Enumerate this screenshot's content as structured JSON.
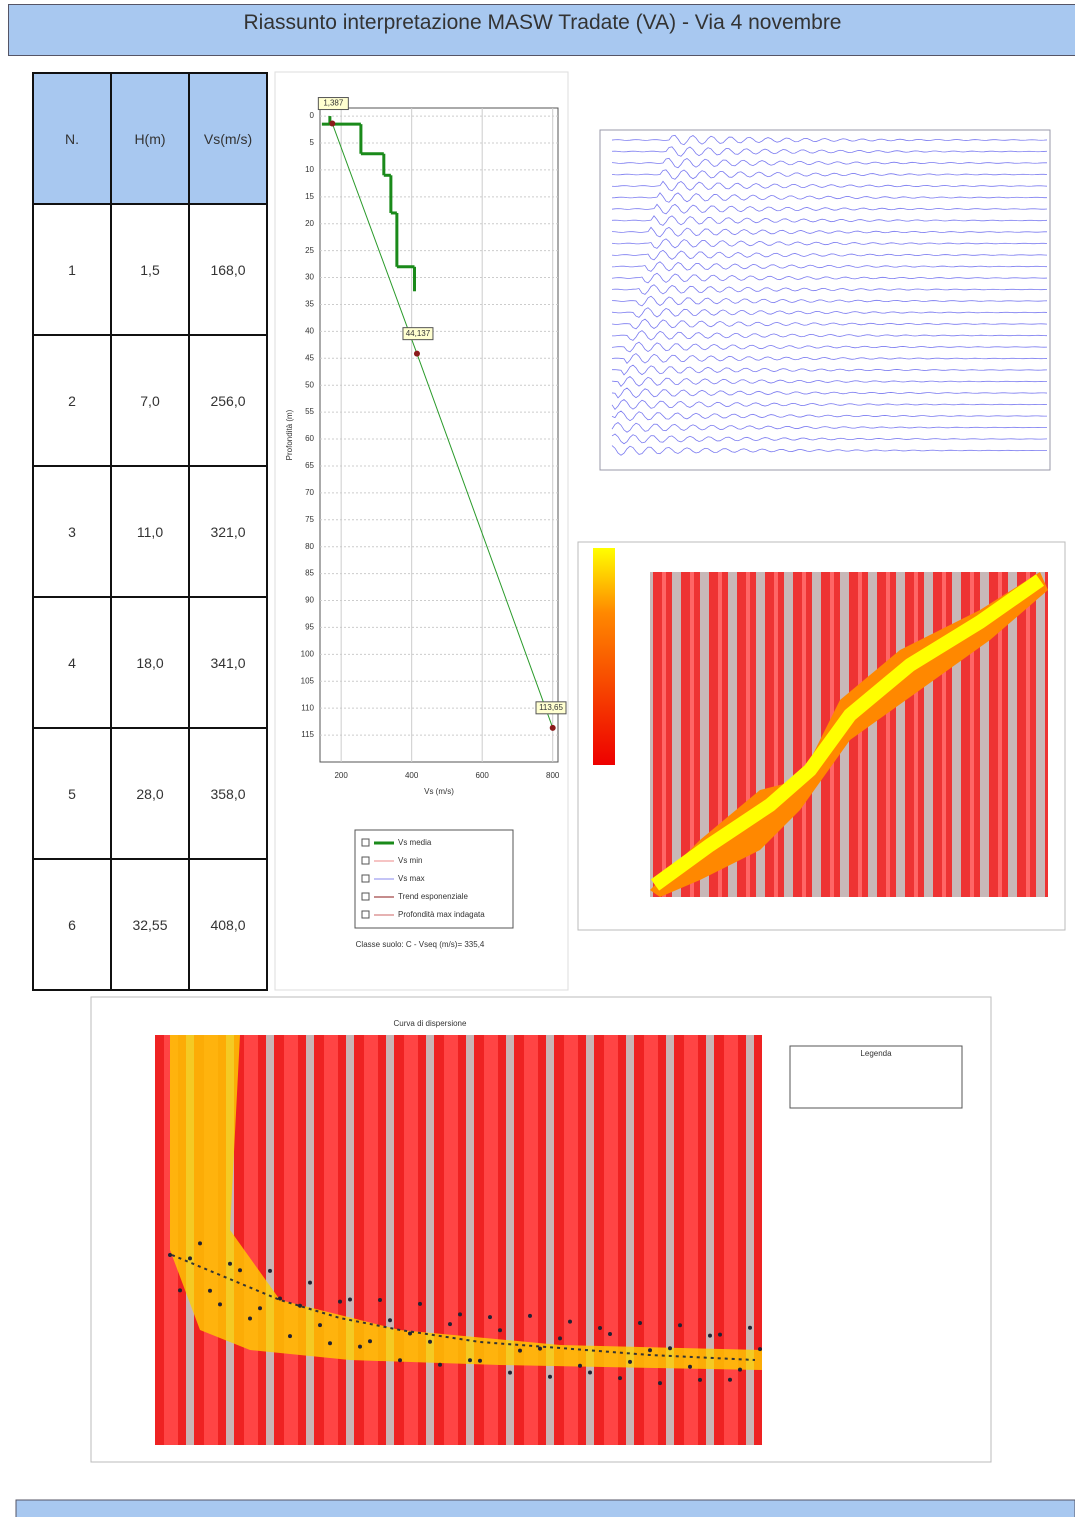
{
  "header": {
    "title": "Riassunto interpretazione MASW Tradate (VA) - Via 4 novembre"
  },
  "table": {
    "header": [
      "N.",
      "H(m)",
      "Vs(m/s)"
    ],
    "rows": [
      [
        "1",
        "1,5",
        "168,0"
      ],
      [
        "2",
        "7,0",
        "256,0"
      ],
      [
        "3",
        "11,0",
        "321,0"
      ],
      [
        "4",
        "18,0",
        "341,0"
      ],
      [
        "5",
        "28,0",
        "358,0"
      ],
      [
        "6",
        "32,55",
        "408,0"
      ]
    ]
  },
  "profile": {
    "xlabel": "Vs (m/s)",
    "ylabel": "Profondità (m)",
    "xlim": [
      140,
      815
    ],
    "ylim": [
      -1.5,
      120
    ],
    "xticks": [
      200,
      400,
      600,
      800
    ],
    "yticks": [
      0,
      5,
      10,
      15,
      20,
      25,
      30,
      35,
      40,
      45,
      50,
      55,
      60,
      65,
      70,
      75,
      80,
      85,
      90,
      95,
      100,
      105,
      110,
      115
    ],
    "step": {
      "color": "#1a8a1a",
      "depths": [
        1.5,
        7,
        11,
        18,
        28,
        32.55
      ],
      "vs": [
        168,
        256,
        321,
        341,
        358,
        408
      ]
    },
    "trend": {
      "color": "#2a9a2a",
      "points": [
        {
          "x": 175,
          "y": 1.387,
          "label": "1,387"
        },
        {
          "x": 415,
          "y": 44.137,
          "label": "44,137"
        },
        {
          "x": 800,
          "y": 113.65,
          "label": "113,65"
        }
      ]
    },
    "legend": [
      "Vs media",
      "Vs min",
      "Vs max",
      "Trend esponenziale",
      "Profondità max indagata"
    ],
    "caption": "Classe suolo: C - Vseq (m/s)= 335,4"
  },
  "dispersion": {
    "title": "Curva di dispersione",
    "legend_title": "Legenda"
  }
}
